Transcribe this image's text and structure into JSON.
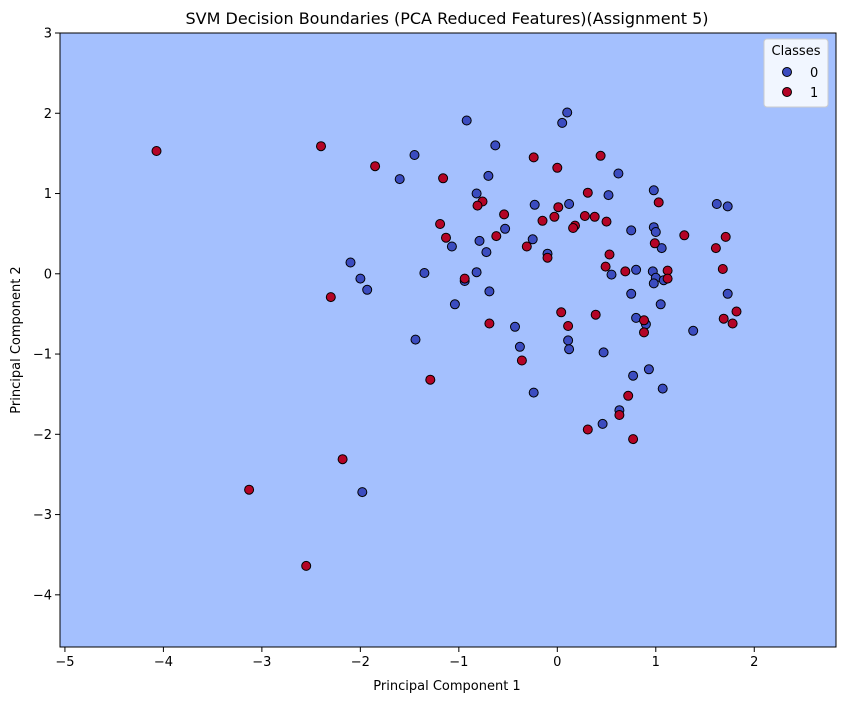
{
  "chart_data": {
    "type": "scatter",
    "title": "SVM Decision Boundaries (PCA Reduced Features)(Assignment 5)",
    "xlabel": "Principal Component 1",
    "ylabel": "Principal Component 2",
    "xlim": [
      -5.05,
      2.83
    ],
    "ylim": [
      -4.65,
      3.0
    ],
    "xticks": [
      -5,
      -4,
      -3,
      -2,
      -1,
      0,
      1,
      2
    ],
    "yticks": [
      3,
      2,
      1,
      0,
      -1,
      -2,
      -3,
      -4
    ],
    "tick_labels_x": [
      "−5",
      "−4",
      "−3",
      "−2",
      "−1",
      "0",
      "1",
      "2"
    ],
    "tick_labels_y": [
      "3",
      "2",
      "1",
      "0",
      "−1",
      "−2",
      "−3",
      "−4"
    ],
    "grid": false,
    "background_region_color": "#a4c0fe",
    "legend": {
      "title": "Classes",
      "placement": "top-right",
      "entries": [
        "0",
        "1"
      ]
    },
    "series": [
      {
        "name": "0",
        "color": "#3b4cc0",
        "points": [
          [
            -0.92,
            1.91
          ],
          [
            0.1,
            2.01
          ],
          [
            0.05,
            1.88
          ],
          [
            -0.63,
            1.6
          ],
          [
            -1.45,
            1.48
          ],
          [
            -1.6,
            1.18
          ],
          [
            -0.7,
            1.22
          ],
          [
            0.62,
            1.25
          ],
          [
            -0.82,
            1.0
          ],
          [
            0.98,
            1.04
          ],
          [
            0.52,
            0.98
          ],
          [
            1.62,
            0.87
          ],
          [
            1.73,
            0.84
          ],
          [
            -0.23,
            0.86
          ],
          [
            0.12,
            0.87
          ],
          [
            -0.53,
            0.56
          ],
          [
            -0.25,
            0.43
          ],
          [
            0.98,
            0.58
          ],
          [
            1.0,
            0.52
          ],
          [
            0.75,
            0.54
          ],
          [
            -0.79,
            0.41
          ],
          [
            -1.07,
            0.34
          ],
          [
            1.06,
            0.32
          ],
          [
            -0.72,
            0.27
          ],
          [
            -0.1,
            0.25
          ],
          [
            -2.1,
            0.14
          ],
          [
            -1.35,
            0.01
          ],
          [
            -0.82,
            0.02
          ],
          [
            0.55,
            -0.01
          ],
          [
            0.97,
            0.03
          ],
          [
            0.8,
            0.05
          ],
          [
            1.0,
            -0.05
          ],
          [
            1.08,
            -0.08
          ],
          [
            -2.0,
            -0.06
          ],
          [
            -0.94,
            -0.09
          ],
          [
            0.98,
            -0.12
          ],
          [
            -1.93,
            -0.2
          ],
          [
            -0.69,
            -0.22
          ],
          [
            0.75,
            -0.25
          ],
          [
            1.73,
            -0.25
          ],
          [
            -1.04,
            -0.38
          ],
          [
            1.05,
            -0.38
          ],
          [
            0.8,
            -0.55
          ],
          [
            0.9,
            -0.63
          ],
          [
            -0.43,
            -0.66
          ],
          [
            1.38,
            -0.71
          ],
          [
            -1.44,
            -0.82
          ],
          [
            0.11,
            -0.83
          ],
          [
            -0.38,
            -0.91
          ],
          [
            0.12,
            -0.94
          ],
          [
            0.47,
            -0.98
          ],
          [
            0.93,
            -1.19
          ],
          [
            0.77,
            -1.27
          ],
          [
            1.07,
            -1.43
          ],
          [
            -0.24,
            -1.48
          ],
          [
            0.63,
            -1.7
          ],
          [
            0.46,
            -1.87
          ],
          [
            -1.98,
            -2.72
          ]
        ]
      },
      {
        "name": "1",
        "color": "#b40426",
        "points": [
          [
            -4.07,
            1.53
          ],
          [
            -2.4,
            1.59
          ],
          [
            -1.85,
            1.34
          ],
          [
            -0.24,
            1.45
          ],
          [
            0.44,
            1.47
          ],
          [
            0.0,
            1.32
          ],
          [
            -1.16,
            1.19
          ],
          [
            0.31,
            1.01
          ],
          [
            1.03,
            0.89
          ],
          [
            -0.76,
            0.9
          ],
          [
            -0.81,
            0.85
          ],
          [
            0.01,
            0.83
          ],
          [
            -0.54,
            0.74
          ],
          [
            0.28,
            0.72
          ],
          [
            0.38,
            0.71
          ],
          [
            -0.03,
            0.71
          ],
          [
            -0.15,
            0.66
          ],
          [
            0.5,
            0.65
          ],
          [
            -1.19,
            0.62
          ],
          [
            0.18,
            0.6
          ],
          [
            0.16,
            0.57
          ],
          [
            1.29,
            0.48
          ],
          [
            -0.62,
            0.47
          ],
          [
            -1.13,
            0.45
          ],
          [
            1.71,
            0.46
          ],
          [
            0.99,
            0.38
          ],
          [
            -0.31,
            0.34
          ],
          [
            1.61,
            0.32
          ],
          [
            0.53,
            0.24
          ],
          [
            -0.1,
            0.2
          ],
          [
            0.49,
            0.09
          ],
          [
            1.68,
            0.06
          ],
          [
            1.12,
            0.04
          ],
          [
            0.69,
            0.03
          ],
          [
            1.12,
            -0.06
          ],
          [
            -0.94,
            -0.06
          ],
          [
            -2.3,
            -0.29
          ],
          [
            0.04,
            -0.48
          ],
          [
            0.39,
            -0.51
          ],
          [
            1.82,
            -0.47
          ],
          [
            1.69,
            -0.56
          ],
          [
            0.88,
            -0.58
          ],
          [
            1.78,
            -0.62
          ],
          [
            -0.69,
            -0.62
          ],
          [
            0.11,
            -0.65
          ],
          [
            0.88,
            -0.73
          ],
          [
            -0.36,
            -1.08
          ],
          [
            -1.29,
            -1.32
          ],
          [
            0.72,
            -1.52
          ],
          [
            0.63,
            -1.76
          ],
          [
            0.31,
            -1.94
          ],
          [
            0.77,
            -2.06
          ],
          [
            -2.18,
            -2.31
          ],
          [
            -3.13,
            -2.69
          ],
          [
            -2.55,
            -3.64
          ]
        ]
      }
    ]
  }
}
